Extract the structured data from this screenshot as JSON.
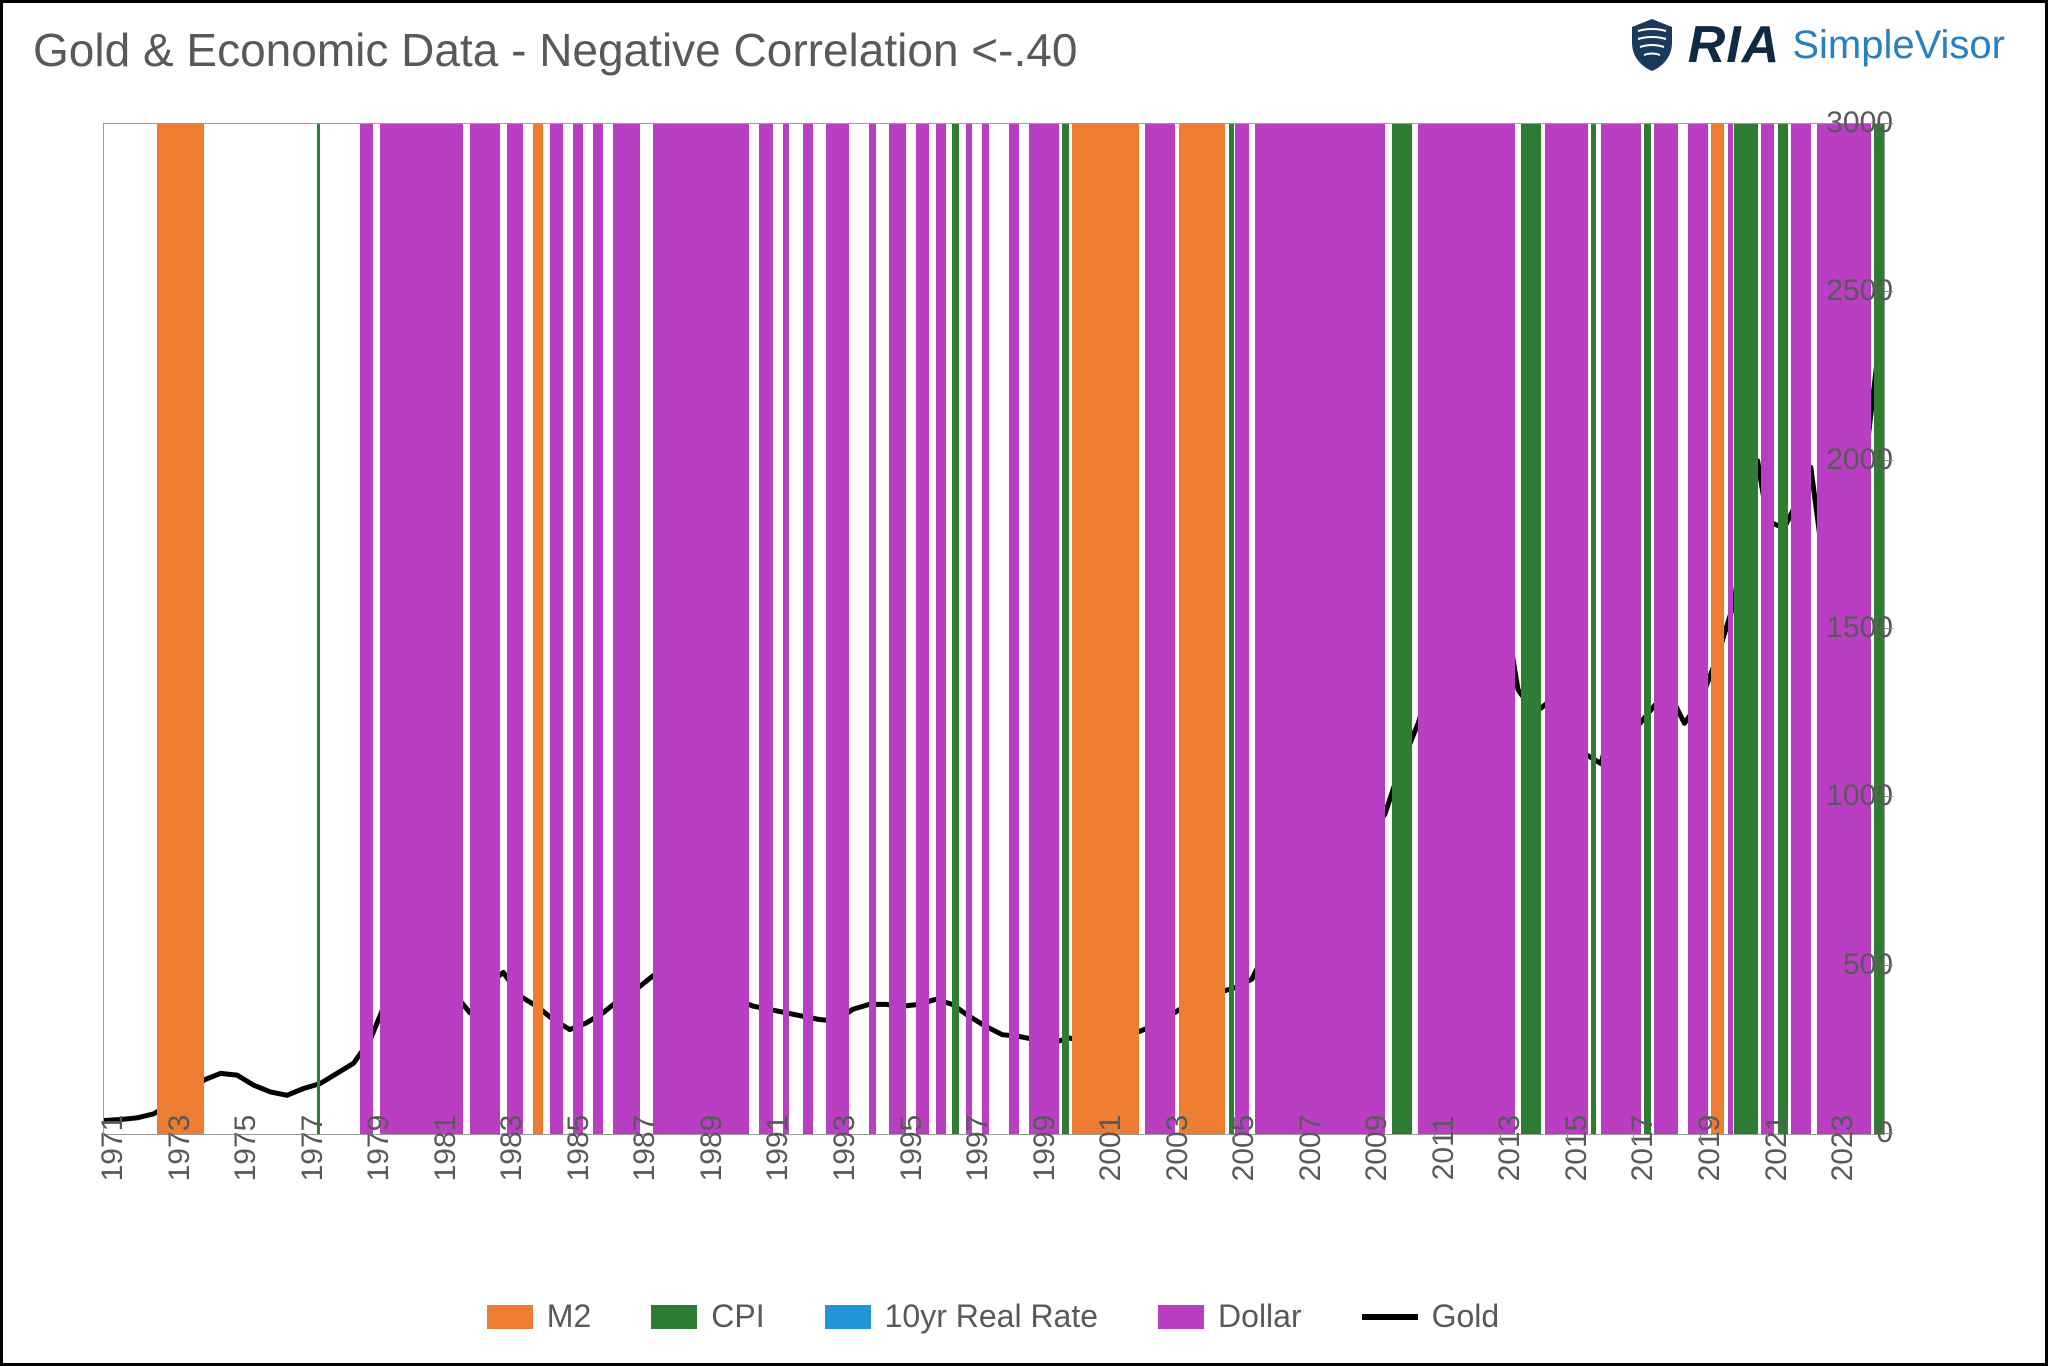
{
  "title": "Gold & Economic Data  - Negative Correlation <-.40",
  "logo": {
    "ria": "RIA",
    "simplevisor": "SimpleVisor"
  },
  "chart": {
    "type": "line-with-bands",
    "background_color": "#ffffff",
    "border_color": "#999999",
    "x": {
      "min": 1971,
      "max": 2024.5,
      "ticks": [
        1971,
        1973,
        1975,
        1977,
        1979,
        1981,
        1983,
        1985,
        1987,
        1989,
        1991,
        1993,
        1995,
        1997,
        1999,
        2001,
        2003,
        2005,
        2007,
        2009,
        2011,
        2013,
        2015,
        2017,
        2019,
        2021,
        2023
      ],
      "fontsize": 30,
      "color": "#595959"
    },
    "y": {
      "min": 0,
      "max": 3000,
      "tick_step": 500,
      "ticks": [
        0,
        500,
        1000,
        1500,
        2000,
        2500,
        3000
      ],
      "fontsize": 30,
      "color": "#595959"
    },
    "series_colors": {
      "M2": "#ed7d31",
      "CPI": "#2e7d32",
      "10yr Real Rate": "#2196d6",
      "Dollar": "#b93ec1",
      "Gold": "#000000"
    },
    "legend": [
      {
        "label": "M2",
        "type": "swatch",
        "color": "#ed7d31"
      },
      {
        "label": "CPI",
        "type": "swatch",
        "color": "#2e7d32"
      },
      {
        "label": "10yr Real Rate",
        "type": "swatch",
        "color": "#2196d6"
      },
      {
        "label": "Dollar",
        "type": "swatch",
        "color": "#b93ec1"
      },
      {
        "label": "Gold",
        "type": "line",
        "color": "#000000"
      }
    ],
    "bands": {
      "M2": [
        [
          1972.6,
          1974.0
        ],
        [
          1983.9,
          1984.2
        ],
        [
          2000.1,
          2002.1
        ],
        [
          2003.3,
          2004.7
        ],
        [
          2019.3,
          2019.7
        ]
      ],
      "CPI": [
        [
          1977.4,
          1977.5
        ],
        [
          1996.5,
          1996.7
        ],
        [
          1999.8,
          2000.0
        ],
        [
          2004.8,
          2004.95
        ],
        [
          2009.7,
          2010.3
        ],
        [
          2013.6,
          2014.2
        ],
        [
          2015.7,
          2015.85
        ],
        [
          2017.3,
          2017.5
        ],
        [
          2020.0,
          2020.7
        ],
        [
          2021.3,
          2021.6
        ],
        [
          2024.2,
          2024.5
        ]
      ],
      "Dollar": [
        [
          1978.7,
          1979.1
        ],
        [
          1979.3,
          1981.8
        ],
        [
          1982.0,
          1982.9
        ],
        [
          1983.1,
          1983.6
        ],
        [
          1984.4,
          1984.8
        ],
        [
          1985.1,
          1985.4
        ],
        [
          1985.7,
          1986.0
        ],
        [
          1986.3,
          1987.1
        ],
        [
          1987.5,
          1990.4
        ],
        [
          1990.7,
          1991.1
        ],
        [
          1991.4,
          1991.6
        ],
        [
          1992.0,
          1992.3
        ],
        [
          1992.7,
          1993.4
        ],
        [
          1994.0,
          1994.2
        ],
        [
          1994.6,
          1995.1
        ],
        [
          1995.4,
          1995.8
        ],
        [
          1996.0,
          1996.3
        ],
        [
          1996.9,
          1997.1
        ],
        [
          1997.4,
          1997.6
        ],
        [
          1998.2,
          1998.5
        ],
        [
          1998.8,
          1999.7
        ],
        [
          2000.2,
          2000.4
        ],
        [
          2002.3,
          2003.2
        ],
        [
          2004.0,
          2004.6
        ],
        [
          2005.0,
          2005.4
        ],
        [
          2005.6,
          2009.5
        ],
        [
          2010.5,
          2013.4
        ],
        [
          2013.7,
          2013.9
        ],
        [
          2014.3,
          2015.6
        ],
        [
          2016.0,
          2017.2
        ],
        [
          2017.6,
          2018.3
        ],
        [
          2018.6,
          2019.2
        ],
        [
          2019.8,
          2019.95
        ],
        [
          2020.8,
          2021.2
        ],
        [
          2021.7,
          2022.3
        ],
        [
          2022.5,
          2024.1
        ]
      ]
    },
    "gold": {
      "line_width": 5,
      "points": [
        [
          1971.0,
          40
        ],
        [
          1971.5,
          43
        ],
        [
          1972.0,
          48
        ],
        [
          1972.5,
          60
        ],
        [
          1973.0,
          90
        ],
        [
          1973.5,
          110
        ],
        [
          1974.0,
          160
        ],
        [
          1974.5,
          180
        ],
        [
          1975.0,
          175
        ],
        [
          1975.5,
          145
        ],
        [
          1976.0,
          125
        ],
        [
          1976.5,
          115
        ],
        [
          1977.0,
          135
        ],
        [
          1977.5,
          150
        ],
        [
          1978.0,
          180
        ],
        [
          1978.5,
          210
        ],
        [
          1979.0,
          280
        ],
        [
          1979.5,
          400
        ],
        [
          1980.0,
          670
        ],
        [
          1980.3,
          560
        ],
        [
          1980.6,
          690
        ],
        [
          1981.0,
          550
        ],
        [
          1981.5,
          420
        ],
        [
          1982.0,
          360
        ],
        [
          1982.5,
          440
        ],
        [
          1983.0,
          480
        ],
        [
          1983.5,
          410
        ],
        [
          1984.0,
          380
        ],
        [
          1984.5,
          340
        ],
        [
          1985.0,
          310
        ],
        [
          1985.5,
          330
        ],
        [
          1986.0,
          360
        ],
        [
          1986.5,
          400
        ],
        [
          1987.0,
          430
        ],
        [
          1987.5,
          470
        ],
        [
          1988.0,
          440
        ],
        [
          1988.5,
          420
        ],
        [
          1989.0,
          400
        ],
        [
          1989.5,
          380
        ],
        [
          1990.0,
          400
        ],
        [
          1990.5,
          380
        ],
        [
          1991.0,
          370
        ],
        [
          1991.5,
          360
        ],
        [
          1992.0,
          350
        ],
        [
          1992.5,
          340
        ],
        [
          1993.0,
          335
        ],
        [
          1993.5,
          370
        ],
        [
          1994.0,
          385
        ],
        [
          1994.5,
          385
        ],
        [
          1995.0,
          380
        ],
        [
          1995.5,
          385
        ],
        [
          1996.0,
          400
        ],
        [
          1996.5,
          385
        ],
        [
          1997.0,
          350
        ],
        [
          1997.5,
          320
        ],
        [
          1998.0,
          295
        ],
        [
          1998.5,
          290
        ],
        [
          1999.0,
          280
        ],
        [
          1999.5,
          270
        ],
        [
          2000.0,
          285
        ],
        [
          2000.5,
          275
        ],
        [
          2001.0,
          265
        ],
        [
          2001.5,
          275
        ],
        [
          2002.0,
          300
        ],
        [
          2002.5,
          320
        ],
        [
          2003.0,
          350
        ],
        [
          2003.5,
          380
        ],
        [
          2004.0,
          410
        ],
        [
          2004.5,
          420
        ],
        [
          2005.0,
          435
        ],
        [
          2005.5,
          460
        ],
        [
          2006.0,
          560
        ],
        [
          2006.5,
          620
        ],
        [
          2007.0,
          660
        ],
        [
          2007.5,
          720
        ],
        [
          2008.0,
          920
        ],
        [
          2008.3,
          980
        ],
        [
          2008.7,
          780
        ],
        [
          2009.0,
          880
        ],
        [
          2009.5,
          950
        ],
        [
          2010.0,
          1100
        ],
        [
          2010.5,
          1220
        ],
        [
          2011.0,
          1380
        ],
        [
          2011.5,
          1680
        ],
        [
          2011.7,
          1820
        ],
        [
          2012.0,
          1700
        ],
        [
          2012.5,
          1620
        ],
        [
          2013.0,
          1620
        ],
        [
          2013.5,
          1320
        ],
        [
          2014.0,
          1250
        ],
        [
          2014.5,
          1290
        ],
        [
          2015.0,
          1200
        ],
        [
          2015.5,
          1130
        ],
        [
          2016.0,
          1100
        ],
        [
          2016.5,
          1310
        ],
        [
          2017.0,
          1200
        ],
        [
          2017.5,
          1260
        ],
        [
          2018.0,
          1320
        ],
        [
          2018.5,
          1220
        ],
        [
          2019.0,
          1290
        ],
        [
          2019.5,
          1420
        ],
        [
          2020.0,
          1580
        ],
        [
          2020.5,
          1950
        ],
        [
          2020.7,
          2000
        ],
        [
          2021.0,
          1820
        ],
        [
          2021.5,
          1800
        ],
        [
          2022.0,
          1900
        ],
        [
          2022.3,
          1980
        ],
        [
          2022.7,
          1680
        ],
        [
          2023.0,
          1850
        ],
        [
          2023.5,
          1940
        ],
        [
          2024.0,
          2050
        ],
        [
          2024.3,
          2300
        ],
        [
          2024.5,
          2500
        ]
      ]
    }
  }
}
